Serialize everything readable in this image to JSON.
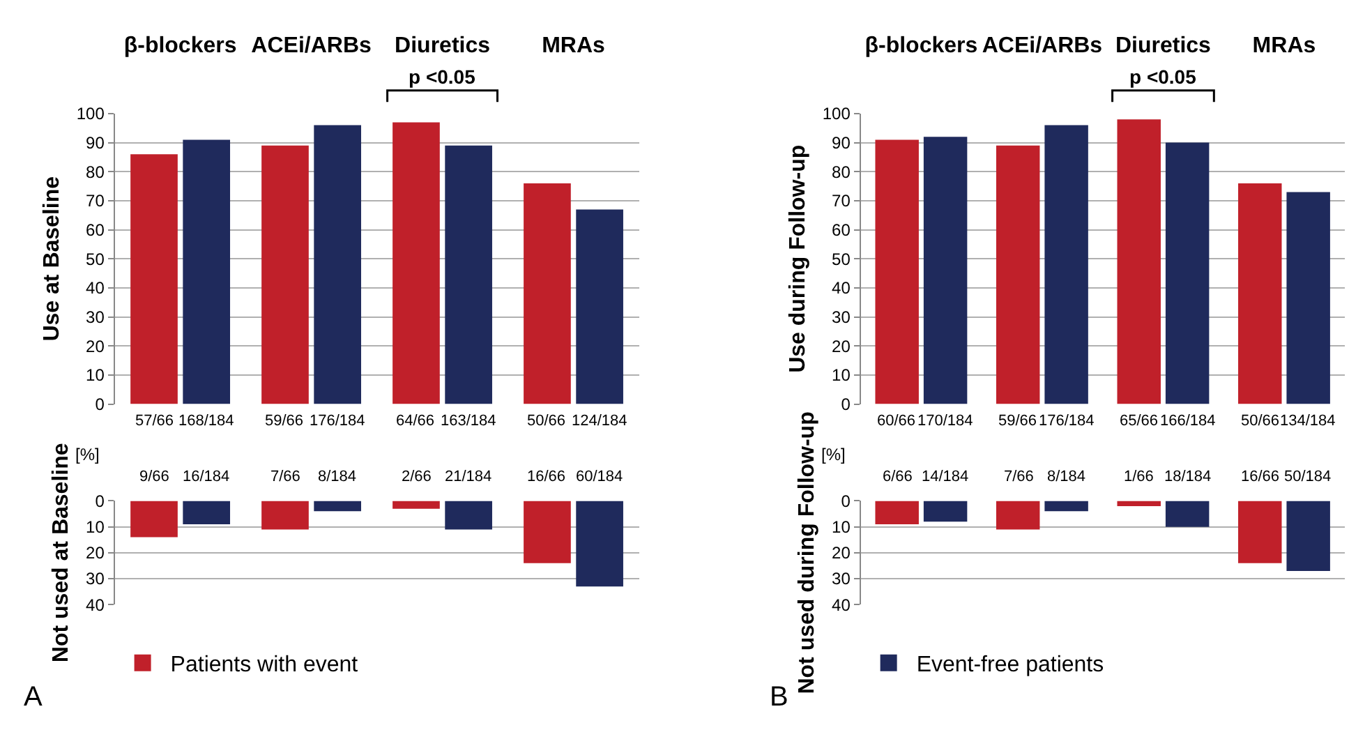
{
  "chart_data": [
    {
      "type": "bar",
      "ylabel": "Use at Baseline",
      "categories": [
        "β-blockers",
        "ACEi/ARBs",
        "Diuretics",
        "MRAs"
      ],
      "ylim": [
        0,
        100
      ],
      "yticks": [
        0,
        10,
        20,
        30,
        40,
        50,
        60,
        70,
        80,
        90,
        100
      ],
      "grid": "y",
      "annotations": [
        "[%]",
        "p <0.05"
      ],
      "series": [
        {
          "color": "#c0202a",
          "values": [
            86,
            89,
            97,
            76
          ],
          "value_labels": [
            "57/66",
            "59/66",
            "64/66",
            "50/66"
          ]
        },
        {
          "color": "#1f2a5c",
          "values": [
            91,
            96,
            89,
            67
          ],
          "value_labels": [
            "168/184",
            "176/184",
            "163/184",
            "124/184"
          ]
        }
      ]
    },
    {
      "type": "bar",
      "ylabel": "Not used at Baseline",
      "categories": [
        null,
        null,
        null,
        null
      ],
      "ylim": [
        40,
        0
      ],
      "yticks": [
        0,
        10,
        20,
        30,
        40
      ],
      "grid": "y",
      "tick_labels": "y",
      "legend": "bottom",
      "annotations": [
        "A"
      ],
      "series": [
        {
          "name": "Patients with event",
          "color": "#c0202a",
          "values": [
            14,
            11,
            3,
            24
          ],
          "value_labels": [
            "9/66",
            "7/66",
            "2/66",
            "16/66"
          ]
        },
        {
          "color": "#1f2a5c",
          "values": [
            9,
            4,
            11,
            33
          ],
          "value_labels": [
            "16/184",
            "8/184",
            "21/184",
            "60/184"
          ]
        }
      ]
    },
    {
      "type": "bar",
      "ylabel": "Use during Follow-up",
      "categories": [
        "β-blockers",
        "ACEi/ARBs",
        "Diuretics",
        "MRAs"
      ],
      "ylim": [
        0,
        100
      ],
      "yticks": [
        0,
        10,
        20,
        30,
        40,
        50,
        60,
        70,
        80,
        90,
        100
      ],
      "grid": "y",
      "annotations": [
        "[%]",
        "p <0.05"
      ],
      "series": [
        {
          "color": "#c0202a",
          "values": [
            91,
            89,
            98,
            76
          ],
          "value_labels": [
            "60/66",
            "59/66",
            "65/66",
            "50/66"
          ]
        },
        {
          "color": "#1f2a5c",
          "values": [
            92,
            96,
            90,
            73
          ],
          "value_labels": [
            "170/184",
            "176/184",
            "166/184",
            "134/184"
          ]
        }
      ]
    },
    {
      "type": "bar",
      "ylabel": "Not used during Follow-up",
      "categories": [
        null,
        null,
        null,
        null
      ],
      "ylim": [
        40,
        0
      ],
      "yticks": [
        0,
        10,
        20,
        30,
        40
      ],
      "grid": "y",
      "tick_labels": "y",
      "legend": "bottom",
      "annotations": [
        "B"
      ],
      "series": [
        {
          "color": "#c0202a",
          "values": [
            9,
            11,
            2,
            24
          ],
          "value_labels": [
            "6/66",
            "7/66",
            "1/66",
            "16/66"
          ]
        },
        {
          "name": "Event-free patients",
          "color": "#1f2a5c",
          "values": [
            8,
            4,
            10,
            27
          ],
          "value_labels": [
            "14/184",
            "8/184",
            "18/184",
            "50/184"
          ]
        }
      ]
    }
  ]
}
